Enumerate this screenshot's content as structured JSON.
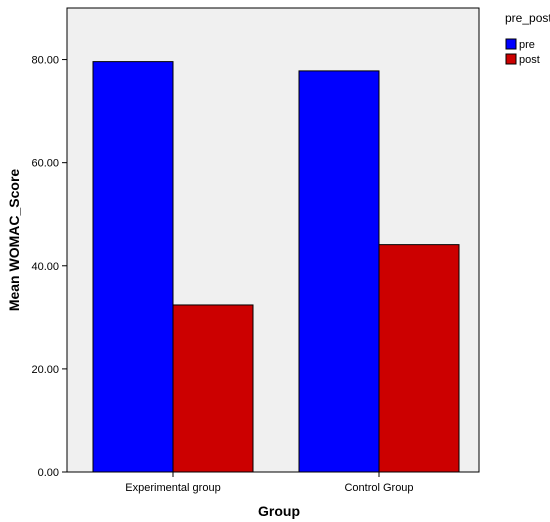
{
  "chart_data": {
    "type": "bar",
    "categories": [
      "Experimental group",
      "Control Group"
    ],
    "series": [
      {
        "name": "pre",
        "values": [
          79.6,
          77.8
        ],
        "color": "#0000ff"
      },
      {
        "name": "post",
        "values": [
          32.4,
          44.1
        ],
        "color": "#cc0000"
      }
    ],
    "xlabel": "Group",
    "ylabel": "Mean WOMAC_Score",
    "ylim": [
      0,
      90
    ],
    "yticks": [
      0,
      20,
      40,
      60,
      80
    ],
    "ytick_labels": [
      "0.00",
      "20.00",
      "40.00",
      "60.00",
      "80.00"
    ],
    "legend": {
      "title": "pre_post",
      "placement": "top-right outside plot"
    },
    "grid": false,
    "plot_background": "#f0f0f0"
  }
}
